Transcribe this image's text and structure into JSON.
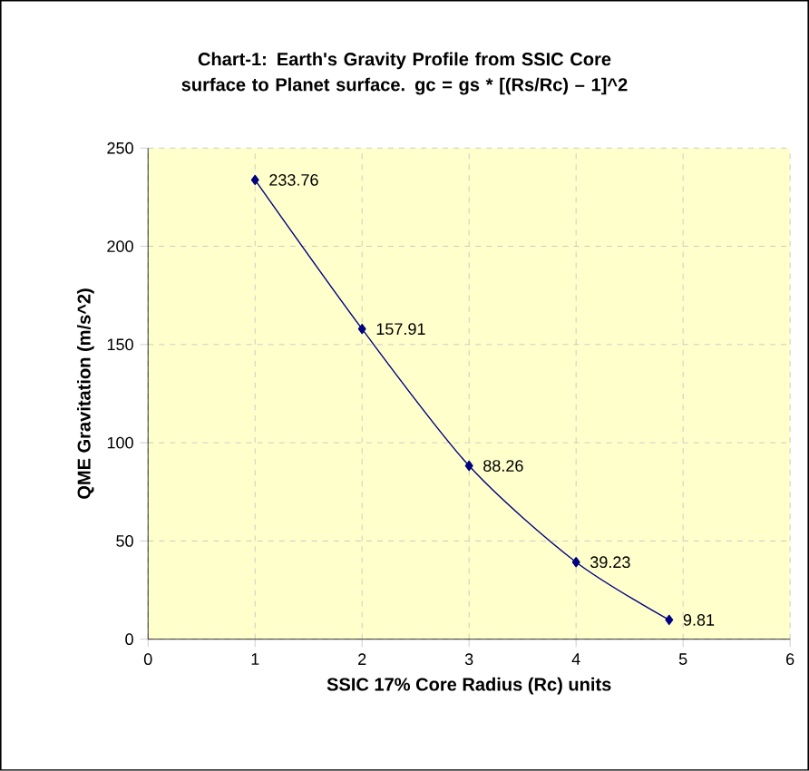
{
  "chart_data": {
    "type": "line",
    "title": "Chart-1:  Earth's Gravity Profile from SSIC Core surface to Planet surface. gc =  gs * [(Rs/Rc) – 1]^2",
    "xlabel": "SSIC 17% Core Radius (Rc) units",
    "ylabel": "QME Gravitation (m/s^2)",
    "x": [
      1,
      2,
      3,
      4,
      4.87
    ],
    "series": [
      {
        "color": "#000080",
        "values": [
          233.76,
          157.91,
          88.26,
          39.23,
          9.81
        ]
      }
    ],
    "xlim": [
      0,
      6
    ],
    "xticks": [
      0,
      1,
      2,
      3,
      4,
      5,
      6
    ],
    "ylim": [
      0,
      250
    ],
    "yticks": [
      0,
      50,
      100,
      150,
      200,
      250
    ],
    "grid": true,
    "marker": "diamond",
    "line_style": "solid",
    "data_labels": true
  }
}
